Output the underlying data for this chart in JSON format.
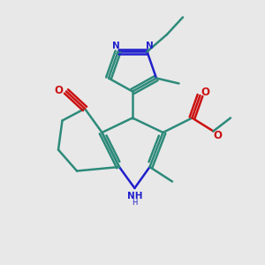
{
  "bg_color": "#e8e8e8",
  "bond_color": "#2d8a7a",
  "n_color": "#2020cc",
  "o_color": "#cc1010",
  "line_width": 1.8,
  "figsize": [
    3.0,
    3.0
  ],
  "dpi": 100,
  "xlim": [
    0,
    10
  ],
  "ylim": [
    0,
    10
  ]
}
